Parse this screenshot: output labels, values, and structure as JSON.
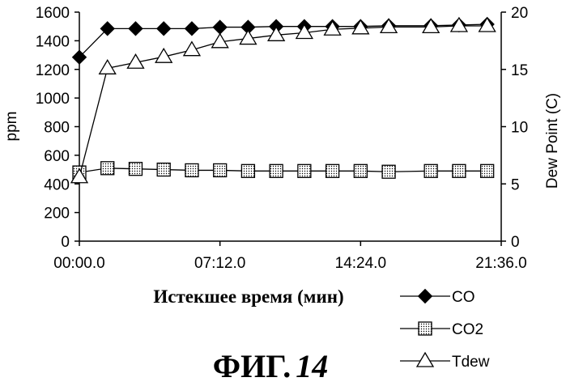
{
  "chart_data": {
    "type": "line",
    "title": "",
    "xlabel": "Истекшее время (мин)",
    "ylabel_left": "ppm",
    "ylabel_right": "Dew Point (C)",
    "x_ticks": [
      "00:00.0",
      "07:12.0",
      "14:24.0",
      "21:36.0"
    ],
    "xlim_minutes": [
      0,
      21.6
    ],
    "ylim_left": [
      0,
      1600
    ],
    "yticks_left": [
      "0",
      "200",
      "400",
      "600",
      "800",
      "1000",
      "1200",
      "1400",
      "1600"
    ],
    "ylim_right": [
      0,
      20
    ],
    "yticks_right": [
      "0",
      "5",
      "10",
      "15",
      "20"
    ],
    "grid": false,
    "legend_position": "bottom-right",
    "series": [
      {
        "name": "CO",
        "axis": "left",
        "marker": "diamond-filled",
        "color": "#000000",
        "x": [
          0,
          1.44,
          2.88,
          4.32,
          5.76,
          7.2,
          8.64,
          10.08,
          11.52,
          12.96,
          14.4,
          15.84,
          18.0,
          19.44,
          20.88
        ],
        "y": [
          1285,
          1485,
          1485,
          1485,
          1485,
          1495,
          1495,
          1500,
          1500,
          1500,
          1500,
          1505,
          1505,
          1510,
          1515
        ]
      },
      {
        "name": "CO2",
        "axis": "left",
        "marker": "square-dotted",
        "color": "#000000",
        "x": [
          0,
          1.44,
          2.88,
          4.32,
          5.76,
          7.2,
          8.64,
          10.08,
          11.52,
          12.96,
          14.4,
          15.84,
          18.0,
          19.44,
          20.88
        ],
        "y": [
          480,
          510,
          505,
          500,
          495,
          495,
          490,
          490,
          490,
          490,
          490,
          485,
          490,
          490,
          490
        ]
      },
      {
        "name": "Tdew",
        "axis": "right",
        "marker": "triangle-open",
        "color": "#000000",
        "x": [
          0,
          1.44,
          2.88,
          4.32,
          5.76,
          7.2,
          8.64,
          10.08,
          11.52,
          12.96,
          14.4,
          15.84,
          18.0,
          19.44,
          20.88
        ],
        "y": [
          5.6,
          15.1,
          15.6,
          16.1,
          16.7,
          17.4,
          17.7,
          18.0,
          18.2,
          18.5,
          18.6,
          18.7,
          18.7,
          18.8,
          18.8
        ]
      }
    ]
  },
  "figure": {
    "caption_prefix": "ФИГ.",
    "caption_number": "14"
  }
}
